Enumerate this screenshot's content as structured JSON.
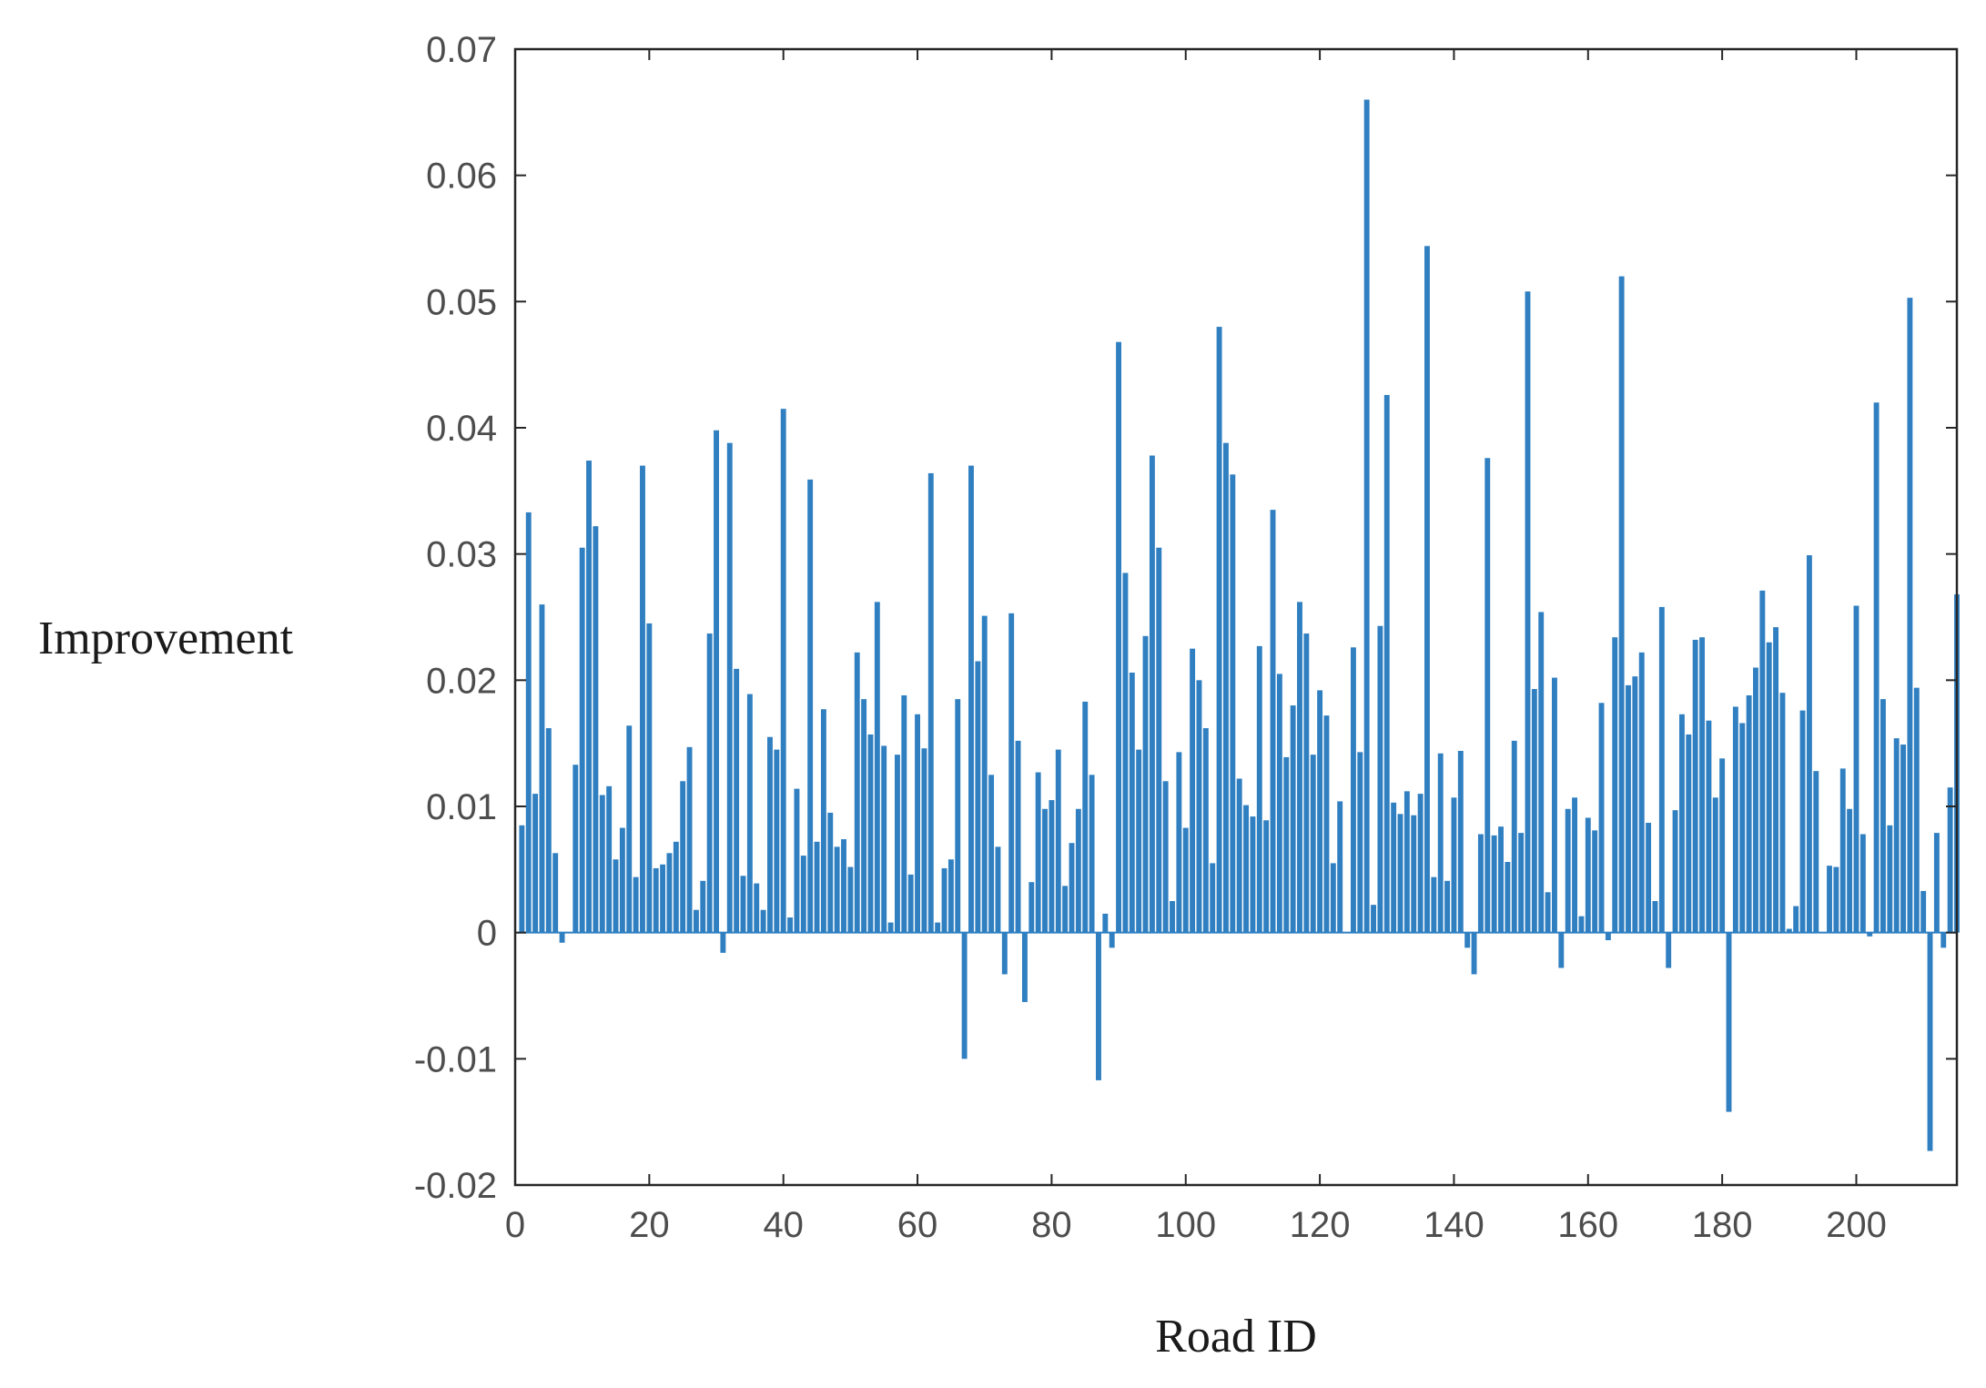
{
  "chart_data": {
    "type": "bar",
    "xlabel": "Road ID",
    "ylabel": "Improvement",
    "xlim": [
      0,
      215
    ],
    "ylim": [
      -0.02,
      0.07
    ],
    "xticks": [
      0,
      20,
      40,
      60,
      80,
      100,
      120,
      140,
      160,
      180,
      200
    ],
    "yticks": [
      -0.02,
      -0.01,
      0,
      0.01,
      0.02,
      0.03,
      0.04,
      0.05,
      0.06,
      0.07
    ],
    "ytick_labels": [
      "-0.02",
      "-0.01",
      "0",
      "0.01",
      "0.02",
      "0.03",
      "0.04",
      "0.05",
      "0.06",
      "0.07"
    ],
    "grid": false,
    "bar_color": "#2f7fc1",
    "x": [
      1,
      2,
      3,
      4,
      5,
      6,
      7,
      8,
      9,
      10,
      11,
      12,
      13,
      14,
      15,
      16,
      17,
      18,
      19,
      20,
      21,
      22,
      23,
      24,
      25,
      26,
      27,
      28,
      29,
      30,
      31,
      32,
      33,
      34,
      35,
      36,
      37,
      38,
      39,
      40,
      41,
      42,
      43,
      44,
      45,
      46,
      47,
      48,
      49,
      50,
      51,
      52,
      53,
      54,
      55,
      56,
      57,
      58,
      59,
      60,
      61,
      62,
      63,
      64,
      65,
      66,
      67,
      68,
      69,
      70,
      71,
      72,
      73,
      74,
      75,
      76,
      77,
      78,
      79,
      80,
      81,
      82,
      83,
      84,
      85,
      86,
      87,
      88,
      89,
      90,
      91,
      92,
      93,
      94,
      95,
      96,
      97,
      98,
      99,
      100,
      101,
      102,
      103,
      104,
      105,
      106,
      107,
      108,
      109,
      110,
      111,
      112,
      113,
      114,
      115,
      116,
      117,
      118,
      119,
      120,
      121,
      122,
      123,
      124,
      125,
      126,
      127,
      128,
      129,
      130,
      131,
      132,
      133,
      134,
      135,
      136,
      137,
      138,
      139,
      140,
      141,
      142,
      143,
      144,
      145,
      146,
      147,
      148,
      149,
      150,
      151,
      152,
      153,
      154,
      155,
      156,
      157,
      158,
      159,
      160,
      161,
      162,
      163,
      164,
      165,
      166,
      167,
      168,
      169,
      170,
      171,
      172,
      173,
      174,
      175,
      176,
      177,
      178,
      179,
      180,
      181,
      182,
      183,
      184,
      185,
      186,
      187,
      188,
      189,
      190,
      191,
      192,
      193,
      194,
      195,
      196,
      197,
      198,
      199,
      200,
      201,
      202,
      203,
      204,
      205,
      206,
      207,
      208,
      209,
      210,
      211,
      212,
      213,
      214,
      215
    ],
    "values": [
      0.0085,
      0.0333,
      0.011,
      0.026,
      0.0162,
      0.0063,
      -0.0008,
      0.0,
      0.0133,
      0.0305,
      0.0374,
      0.0322,
      0.0109,
      0.0116,
      0.0058,
      0.0083,
      0.0164,
      0.0044,
      0.037,
      0.0245,
      0.0051,
      0.0054,
      0.0063,
      0.0072,
      0.012,
      0.0147,
      0.0018,
      0.0041,
      0.0237,
      0.0398,
      -0.0016,
      0.0388,
      0.0209,
      0.0045,
      0.0189,
      0.0039,
      0.0018,
      0.0155,
      0.0145,
      0.0415,
      0.0012,
      0.0114,
      0.0061,
      0.0359,
      0.0072,
      0.0177,
      0.0095,
      0.0068,
      0.0074,
      0.0052,
      0.0222,
      0.0185,
      0.0157,
      0.0262,
      0.0148,
      0.0008,
      0.0141,
      0.0188,
      0.0046,
      0.0173,
      0.0146,
      0.0364,
      0.0008,
      0.0051,
      0.0058,
      0.0185,
      -0.01,
      0.037,
      0.0215,
      0.0251,
      0.0125,
      0.0068,
      -0.0033,
      0.0253,
      0.0152,
      -0.0055,
      0.004,
      0.0127,
      0.0098,
      0.0105,
      0.0145,
      0.0037,
      0.0071,
      0.0098,
      0.0183,
      0.0125,
      -0.0117,
      0.0015,
      -0.0012,
      0.0468,
      0.0285,
      0.0206,
      0.0145,
      0.0235,
      0.0378,
      0.0305,
      0.012,
      0.0025,
      0.0143,
      0.0083,
      0.0225,
      0.02,
      0.0162,
      0.0055,
      0.048,
      0.0388,
      0.0363,
      0.0122,
      0.0101,
      0.0092,
      0.0227,
      0.0089,
      0.0335,
      0.0205,
      0.0139,
      0.018,
      0.0262,
      0.0237,
      0.0141,
      0.0192,
      0.0172,
      0.0055,
      0.0104,
      0.0,
      0.0226,
      0.0143,
      0.066,
      0.0022,
      0.0243,
      0.0426,
      0.0103,
      0.0094,
      0.0112,
      0.0093,
      0.011,
      0.0544,
      0.0044,
      0.0142,
      0.0041,
      0.0107,
      0.0144,
      -0.0012,
      -0.0033,
      0.0078,
      0.0376,
      0.0077,
      0.0084,
      0.0056,
      0.0152,
      0.0079,
      0.0508,
      0.0193,
      0.0254,
      0.0032,
      0.0202,
      -0.0028,
      0.0098,
      0.0107,
      0.0013,
      0.0091,
      0.0081,
      0.0182,
      -0.0006,
      0.0234,
      0.052,
      0.0196,
      0.0203,
      0.0222,
      0.0087,
      0.0025,
      0.0258,
      -0.0028,
      0.0097,
      0.0173,
      0.0157,
      0.0232,
      0.0234,
      0.0168,
      0.0107,
      0.0138,
      -0.0142,
      0.0179,
      0.0166,
      0.0188,
      0.021,
      0.0271,
      0.023,
      0.0242,
      0.019,
      0.0003,
      0.0021,
      0.0176,
      0.0299,
      0.0128,
      0.0,
      0.0053,
      0.0052,
      0.013,
      0.0098,
      0.0259,
      0.0078,
      -0.0003,
      0.042,
      0.0185,
      0.0085,
      0.0154,
      0.0149,
      0.0503,
      0.0194,
      0.0033,
      -0.0173,
      0.0079,
      -0.0012,
      0.0115,
      0.0268
    ]
  }
}
